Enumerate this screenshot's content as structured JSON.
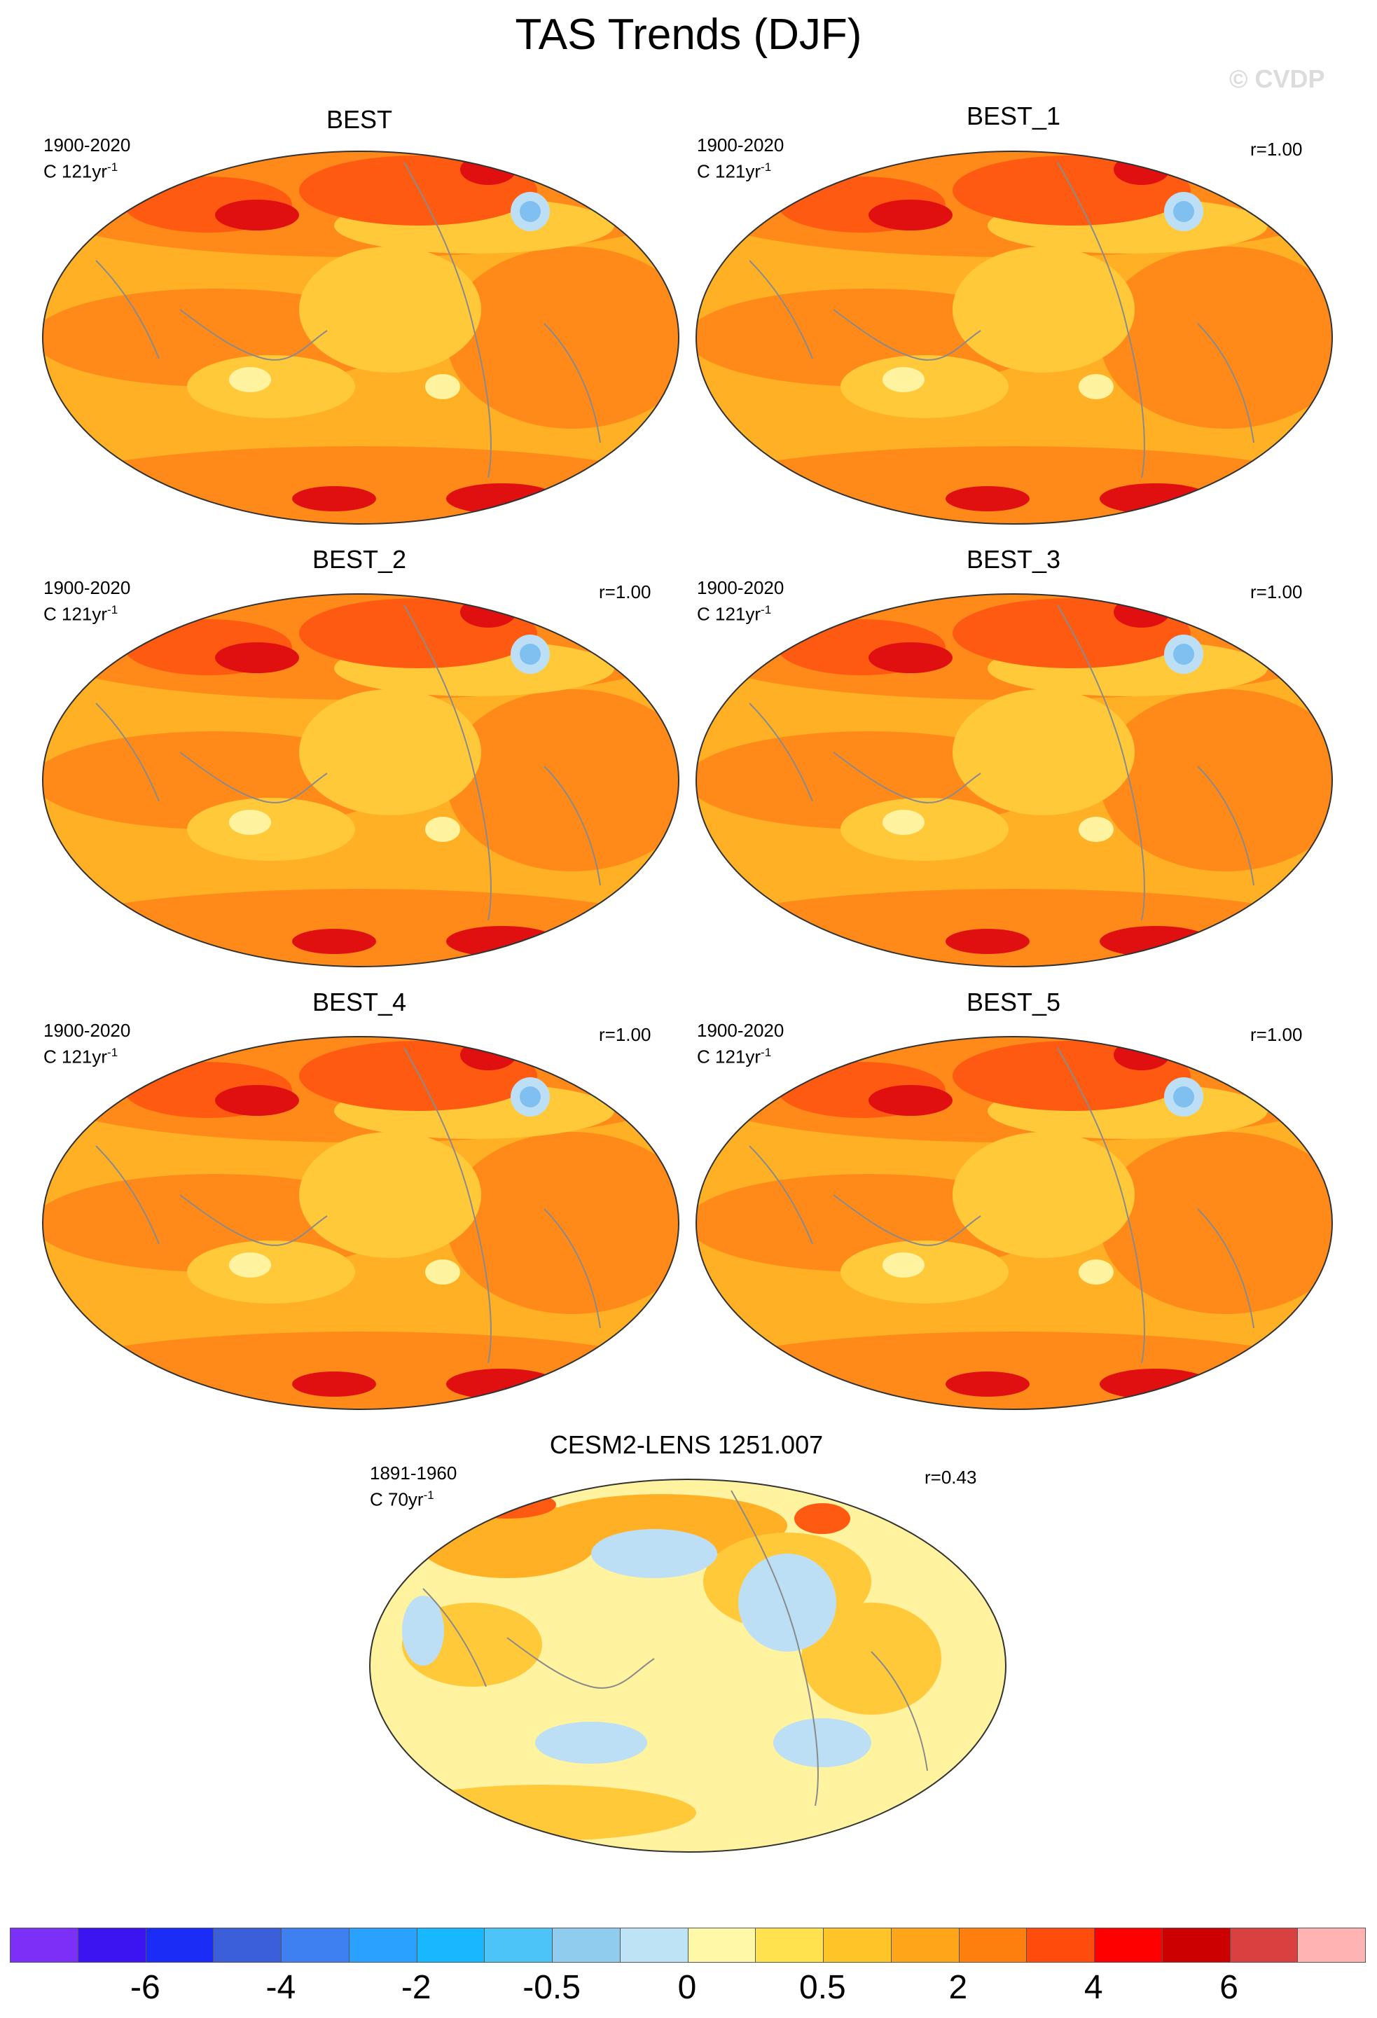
{
  "title": "TAS Trends (DJF)",
  "watermark": "© CVDP",
  "panels": [
    {
      "name": "BEST",
      "period": "1900-2020",
      "units": "C 121yr",
      "units_sup": "-1",
      "r": ""
    },
    {
      "name": "BEST_1",
      "period": "1900-2020",
      "units": "C 121yr",
      "units_sup": "-1",
      "r": "r=1.00"
    },
    {
      "name": "BEST_2",
      "period": "1900-2020",
      "units": "C 121yr",
      "units_sup": "-1",
      "r": "r=1.00"
    },
    {
      "name": "BEST_3",
      "period": "1900-2020",
      "units": "C 121yr",
      "units_sup": "-1",
      "r": "r=1.00"
    },
    {
      "name": "BEST_4",
      "period": "1900-2020",
      "units": "C 121yr",
      "units_sup": "-1",
      "r": "r=1.00"
    },
    {
      "name": "BEST_5",
      "period": "1900-2020",
      "units": "C 121yr",
      "units_sup": "-1",
      "r": "r=1.00"
    },
    {
      "name": "CESM2-LENS 1251.007",
      "period": "1891-1960",
      "units": "C 70yr",
      "units_sup": "-1",
      "r": "r=0.43"
    }
  ],
  "colorbar": {
    "colors": [
      "#7b2ff7",
      "#3b14f0",
      "#1a2cf5",
      "#3a5fd9",
      "#3f80f0",
      "#2aa0ff",
      "#17b8ff",
      "#4cc4f7",
      "#90ccee",
      "#bde3f5",
      "#fff8a6",
      "#ffe24d",
      "#ffc428",
      "#ffa51a",
      "#ff7f0e",
      "#ff4d0d",
      "#ff0000",
      "#cc0000",
      "#d94040",
      "#ffb3b3"
    ],
    "labels": [
      "-6",
      "-4",
      "-2",
      "-0.5",
      "0",
      "0.5",
      "2",
      "4",
      "6"
    ]
  },
  "map_colors": {
    "base": "#ffb024",
    "warm": "#ff8a1a",
    "hot": "#ff5a12",
    "extreme": "#e01010",
    "mild": "#ffc93a",
    "pale": "#fff3a0",
    "cool": "#bcdff5",
    "cold": "#7fc0f0",
    "coast": "#8a8a8a"
  }
}
